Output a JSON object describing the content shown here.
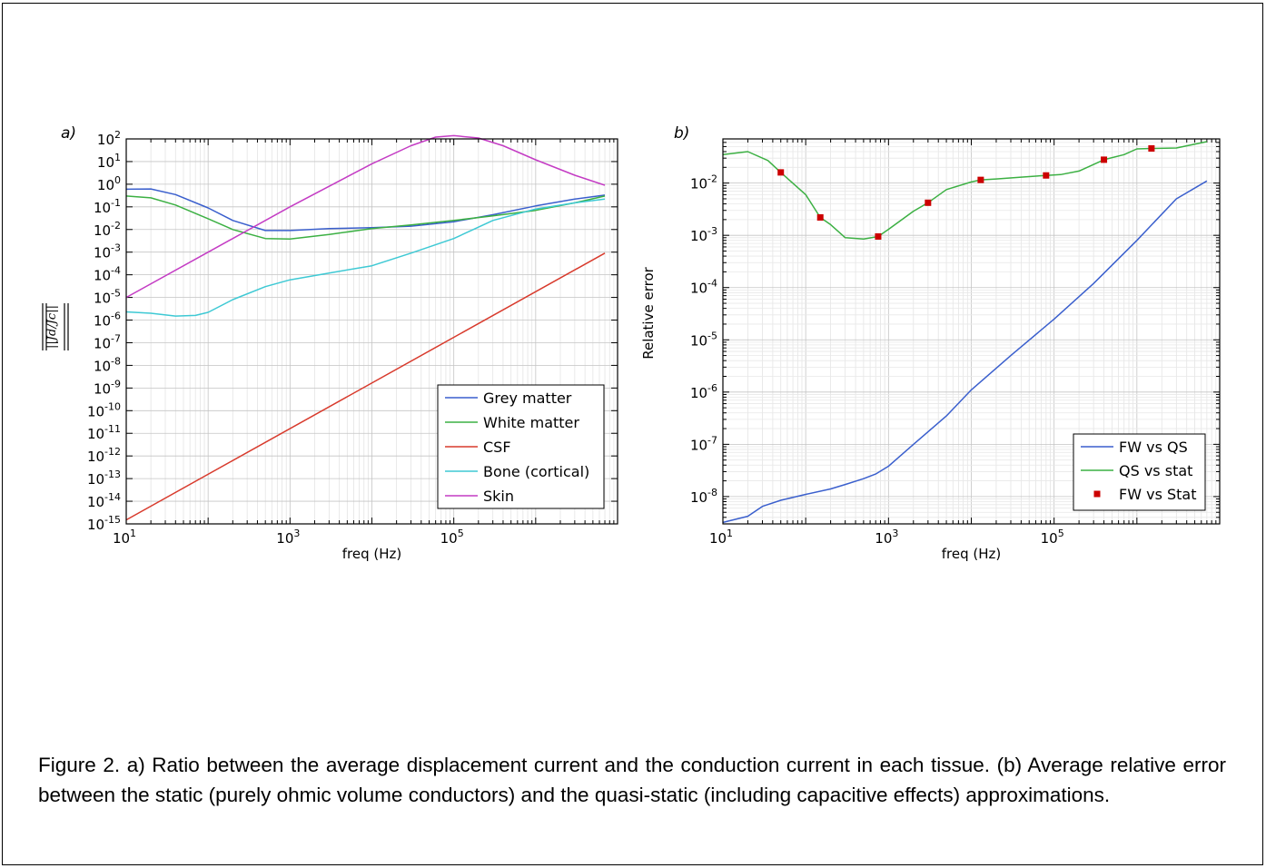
{
  "caption": "Figure 2. a) Ratio between the average displacement current and the conduction current in each tissue. (b) Average relative error between the static (purely ohmic volume conductors) and the quasi-static (including capacitive effects) approximations.",
  "colors": {
    "grey": "#3a5fcd",
    "white": "#3cb043",
    "csf": "#d83a2c",
    "bone": "#3ec9d4",
    "skin": "#c43cc4",
    "fwqs": "#3a5fcd",
    "qsstat": "#3cb043",
    "fwstat": "#cc0000"
  },
  "chart_data": [
    {
      "type": "line",
      "panel_label": "a)",
      "xlabel": "freq (Hz)",
      "ylabel": "||Jd/Jc||",
      "xscale": "log",
      "yscale": "log",
      "xlim": [
        10,
        10000000
      ],
      "ylim": [
        1e-15,
        100.0
      ],
      "grid": true,
      "legend_position": "bottom-right",
      "x_ticks": [
        {
          "label": "10",
          "exp": "1",
          "value": 10
        },
        {
          "label": "10",
          "exp": "3",
          "value": 1000
        },
        {
          "label": "10",
          "exp": "5",
          "value": 100000
        }
      ],
      "y_ticks": [
        {
          "label": "10",
          "exp": "2",
          "value": 100.0
        },
        {
          "label": "10",
          "exp": "1",
          "value": 10.0
        },
        {
          "label": "10",
          "exp": "0",
          "value": 1.0
        },
        {
          "label": "10",
          "exp": "-1",
          "value": 0.1
        },
        {
          "label": "10",
          "exp": "-2",
          "value": 0.01
        },
        {
          "label": "10",
          "exp": "-3",
          "value": 0.001
        },
        {
          "label": "10",
          "exp": "-4",
          "value": 0.0001
        },
        {
          "label": "10",
          "exp": "-5",
          "value": 1e-05
        },
        {
          "label": "10",
          "exp": "-6",
          "value": 1e-06
        },
        {
          "label": "10",
          "exp": "-7",
          "value": 1e-07
        },
        {
          "label": "10",
          "exp": "-8",
          "value": 1e-08
        },
        {
          "label": "10",
          "exp": "-9",
          "value": 1e-09
        },
        {
          "label": "10",
          "exp": "-10",
          "value": 1e-10
        },
        {
          "label": "10",
          "exp": "-11",
          "value": 1e-11
        },
        {
          "label": "10",
          "exp": "-12",
          "value": 1e-12
        },
        {
          "label": "10",
          "exp": "-13",
          "value": 1e-13
        },
        {
          "label": "10",
          "exp": "-14",
          "value": 1e-14
        },
        {
          "label": "10",
          "exp": "-15",
          "value": 1e-15
        }
      ],
      "series": [
        {
          "name": "Grey matter",
          "color_key": "grey",
          "x": [
            10,
            20,
            40,
            100,
            200,
            500,
            1000,
            3000,
            10000,
            30000,
            100000,
            300000,
            1000000,
            3000000,
            7000000
          ],
          "y": [
            0.6,
            0.62,
            0.35,
            0.09,
            0.025,
            0.009,
            0.009,
            0.011,
            0.012,
            0.014,
            0.022,
            0.045,
            0.11,
            0.22,
            0.33
          ]
        },
        {
          "name": "White matter",
          "color_key": "white",
          "x": [
            10,
            20,
            40,
            100,
            200,
            500,
            1000,
            3000,
            10000,
            30000,
            100000,
            300000,
            1000000,
            3000000,
            7000000
          ],
          "y": [
            0.3,
            0.25,
            0.12,
            0.03,
            0.01,
            0.004,
            0.0038,
            0.006,
            0.011,
            0.016,
            0.025,
            0.04,
            0.07,
            0.15,
            0.3
          ]
        },
        {
          "name": "CSF",
          "color_key": "csf",
          "x": [
            10,
            7000000
          ],
          "y": [
            1.5e-15,
            0.0009
          ]
        },
        {
          "name": "Bone (cortical)",
          "color_key": "bone",
          "x": [
            10,
            20,
            40,
            70,
            100,
            200,
            500,
            1000,
            3000,
            10000,
            30000,
            100000,
            300000,
            1000000,
            3000000,
            7000000
          ],
          "y": [
            2.3e-06,
            2e-06,
            1.5e-06,
            1.6e-06,
            2.2e-06,
            8e-06,
            3e-05,
            6e-05,
            0.00012,
            0.00025,
            0.0009,
            0.004,
            0.025,
            0.08,
            0.15,
            0.22
          ]
        },
        {
          "name": "Skin",
          "color_key": "skin",
          "x": [
            10,
            100,
            1000,
            10000,
            30000,
            60000,
            100000,
            200000,
            400000,
            1000000,
            3000000,
            7000000
          ],
          "y": [
            1e-05,
            0.001,
            0.1,
            8,
            50,
            120,
            140,
            110,
            50,
            12,
            2.5,
            0.9
          ]
        }
      ]
    },
    {
      "type": "line",
      "panel_label": "b)",
      "xlabel": "freq (Hz)",
      "ylabel": "Relative error",
      "xscale": "log",
      "yscale": "log",
      "xlim": [
        10,
        10000000
      ],
      "ylim": [
        3e-09,
        0.07
      ],
      "grid": true,
      "legend_position": "bottom-right",
      "x_ticks": [
        {
          "label": "10",
          "exp": "1",
          "value": 10
        },
        {
          "label": "10",
          "exp": "3",
          "value": 1000
        },
        {
          "label": "10",
          "exp": "5",
          "value": 100000
        }
      ],
      "y_ticks": [
        {
          "label": "10",
          "exp": "-2",
          "value": 0.01
        },
        {
          "label": "10",
          "exp": "-3",
          "value": 0.001
        },
        {
          "label": "10",
          "exp": "-4",
          "value": 0.0001
        },
        {
          "label": "10",
          "exp": "-5",
          "value": 1e-05
        },
        {
          "label": "10",
          "exp": "-6",
          "value": 1e-06
        },
        {
          "label": "10",
          "exp": "-7",
          "value": 1e-07
        },
        {
          "label": "10",
          "exp": "-8",
          "value": 1e-08
        }
      ],
      "series": [
        {
          "name": "FW vs QS",
          "color_key": "fwqs",
          "kind": "line",
          "x": [
            10,
            20,
            30,
            50,
            100,
            200,
            300,
            500,
            700,
            1000,
            2000,
            5000,
            10000,
            30000,
            100000,
            300000,
            1000000,
            3000000,
            7000000
          ],
          "y": [
            3.2e-09,
            4.2e-09,
            6.5e-09,
            8.5e-09,
            1.1e-08,
            1.4e-08,
            1.7e-08,
            2.2e-08,
            2.7e-08,
            3.8e-08,
            1e-07,
            3.5e-07,
            1.1e-06,
            5e-06,
            2.5e-05,
            0.00012,
            0.0008,
            0.005,
            0.011
          ]
        },
        {
          "name": "QS vs stat",
          "color_key": "qsstat",
          "kind": "line",
          "x": [
            10,
            20,
            35,
            50,
            100,
            150,
            200,
            300,
            500,
            750,
            1000,
            2000,
            3000,
            5000,
            10000,
            13000,
            20000,
            40000,
            80000,
            120000,
            200000,
            400000,
            700000,
            1000000,
            1500000,
            3000000,
            7000000
          ],
          "y": [
            0.035,
            0.04,
            0.027,
            0.016,
            0.006,
            0.0022,
            0.0016,
            0.0009,
            0.00085,
            0.00095,
            0.0013,
            0.0029,
            0.0042,
            0.0075,
            0.0105,
            0.0115,
            0.012,
            0.013,
            0.014,
            0.0145,
            0.017,
            0.028,
            0.035,
            0.045,
            0.046,
            0.047,
            0.062
          ]
        },
        {
          "name": "FW vs Stat",
          "color_key": "fwstat",
          "kind": "marker",
          "x": [
            50,
            150,
            750,
            3000,
            13000,
            80000,
            400000,
            1500000
          ],
          "y": [
            0.016,
            0.0022,
            0.00095,
            0.0042,
            0.0115,
            0.014,
            0.028,
            0.046
          ]
        }
      ]
    }
  ]
}
